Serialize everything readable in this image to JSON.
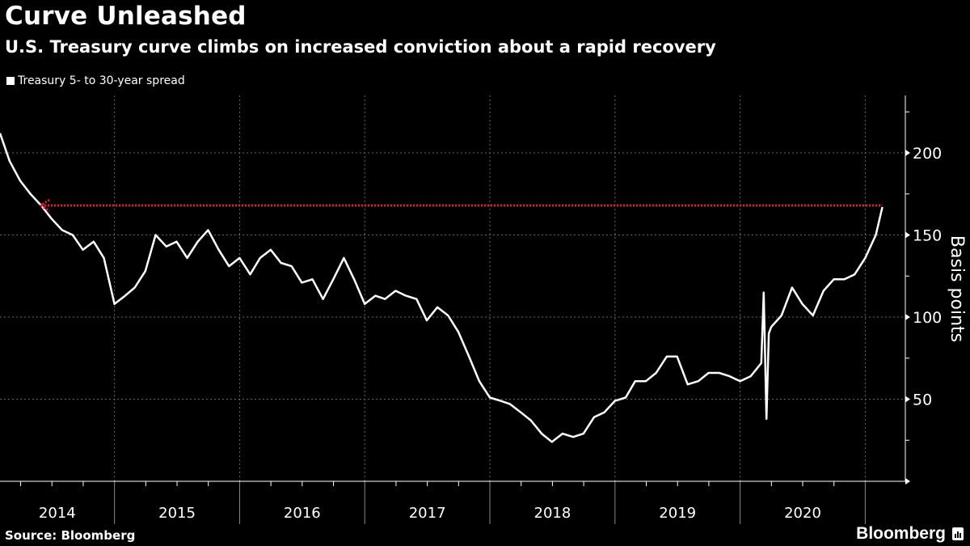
{
  "title": "Curve Unleashed",
  "subtitle": "U.S. Treasury curve climbs on increased conviction about a rapid recovery",
  "source": "Source: Bloomberg",
  "brand": "Bloomberg",
  "chart_data": {
    "type": "line",
    "title": "Curve Unleashed",
    "subtitle": "U.S. Treasury curve climbs on increased conviction about a rapid recovery",
    "ylabel": "Basis points",
    "xlabel": "",
    "ylim": [
      0,
      235
    ],
    "xlim": [
      "2014-02-01",
      "2021-02-28"
    ],
    "yticks": [
      50,
      100,
      150,
      200
    ],
    "xtick_labels": [
      "2014",
      "2015",
      "2016",
      "2017",
      "2018",
      "2019",
      "2020"
    ],
    "grid": true,
    "legend_position": "top-left",
    "colors": {
      "series": "#ffffff",
      "reference": "#e0213a",
      "grid": "#666666",
      "background": "#000000"
    },
    "reference_line": {
      "value": 168,
      "from": "2014-06-01",
      "to": "2021-02-20",
      "style": "dotted-arrow"
    },
    "series": [
      {
        "name": "Treasury 5- to 30-year spread",
        "points": [
          [
            "2014-02-01",
            212
          ],
          [
            "2014-03-01",
            195
          ],
          [
            "2014-04-01",
            183
          ],
          [
            "2014-05-01",
            175
          ],
          [
            "2014-06-01",
            168
          ],
          [
            "2014-07-01",
            160
          ],
          [
            "2014-08-01",
            153
          ],
          [
            "2014-09-01",
            150
          ],
          [
            "2014-10-01",
            141
          ],
          [
            "2014-11-01",
            146
          ],
          [
            "2014-12-01",
            136
          ],
          [
            "2015-01-01",
            108
          ],
          [
            "2015-02-01",
            113
          ],
          [
            "2015-03-01",
            118
          ],
          [
            "2015-04-01",
            128
          ],
          [
            "2015-05-01",
            150
          ],
          [
            "2015-06-01",
            143
          ],
          [
            "2015-07-01",
            146
          ],
          [
            "2015-08-01",
            136
          ],
          [
            "2015-09-01",
            146
          ],
          [
            "2015-10-01",
            153
          ],
          [
            "2015-11-01",
            141
          ],
          [
            "2015-12-01",
            131
          ],
          [
            "2016-01-01",
            136
          ],
          [
            "2016-02-01",
            126
          ],
          [
            "2016-03-01",
            136
          ],
          [
            "2016-04-01",
            141
          ],
          [
            "2016-05-01",
            133
          ],
          [
            "2016-06-01",
            131
          ],
          [
            "2016-07-01",
            121
          ],
          [
            "2016-08-01",
            123
          ],
          [
            "2016-09-01",
            111
          ],
          [
            "2016-10-01",
            123
          ],
          [
            "2016-11-01",
            136
          ],
          [
            "2016-12-01",
            123
          ],
          [
            "2017-01-01",
            108
          ],
          [
            "2017-02-01",
            113
          ],
          [
            "2017-03-01",
            111
          ],
          [
            "2017-04-01",
            116
          ],
          [
            "2017-05-01",
            113
          ],
          [
            "2017-06-01",
            111
          ],
          [
            "2017-07-01",
            98
          ],
          [
            "2017-08-01",
            106
          ],
          [
            "2017-09-01",
            101
          ],
          [
            "2017-10-01",
            91
          ],
          [
            "2017-11-01",
            76
          ],
          [
            "2017-12-01",
            61
          ],
          [
            "2018-01-01",
            51
          ],
          [
            "2018-02-01",
            49
          ],
          [
            "2018-03-01",
            47
          ],
          [
            "2018-04-01",
            42
          ],
          [
            "2018-05-01",
            37
          ],
          [
            "2018-06-01",
            29
          ],
          [
            "2018-07-01",
            24
          ],
          [
            "2018-08-01",
            29
          ],
          [
            "2018-09-01",
            27
          ],
          [
            "2018-10-01",
            29
          ],
          [
            "2018-11-01",
            39
          ],
          [
            "2018-12-01",
            42
          ],
          [
            "2019-01-01",
            49
          ],
          [
            "2019-02-01",
            51
          ],
          [
            "2019-03-01",
            61
          ],
          [
            "2019-04-01",
            61
          ],
          [
            "2019-05-01",
            66
          ],
          [
            "2019-06-01",
            76
          ],
          [
            "2019-07-01",
            76
          ],
          [
            "2019-08-01",
            59
          ],
          [
            "2019-09-01",
            61
          ],
          [
            "2019-10-01",
            66
          ],
          [
            "2019-11-01",
            66
          ],
          [
            "2019-12-01",
            64
          ],
          [
            "2020-01-01",
            61
          ],
          [
            "2020-02-01",
            64
          ],
          [
            "2020-03-03",
            72
          ],
          [
            "2020-03-10",
            115
          ],
          [
            "2020-03-18",
            38
          ],
          [
            "2020-03-25",
            90
          ],
          [
            "2020-04-01",
            94
          ],
          [
            "2020-05-01",
            101
          ],
          [
            "2020-06-01",
            118
          ],
          [
            "2020-07-01",
            108
          ],
          [
            "2020-08-01",
            101
          ],
          [
            "2020-09-01",
            116
          ],
          [
            "2020-10-01",
            123
          ],
          [
            "2020-11-01",
            123
          ],
          [
            "2020-12-01",
            126
          ],
          [
            "2021-01-01",
            136
          ],
          [
            "2021-02-01",
            150
          ],
          [
            "2021-02-20",
            167
          ]
        ]
      }
    ]
  }
}
